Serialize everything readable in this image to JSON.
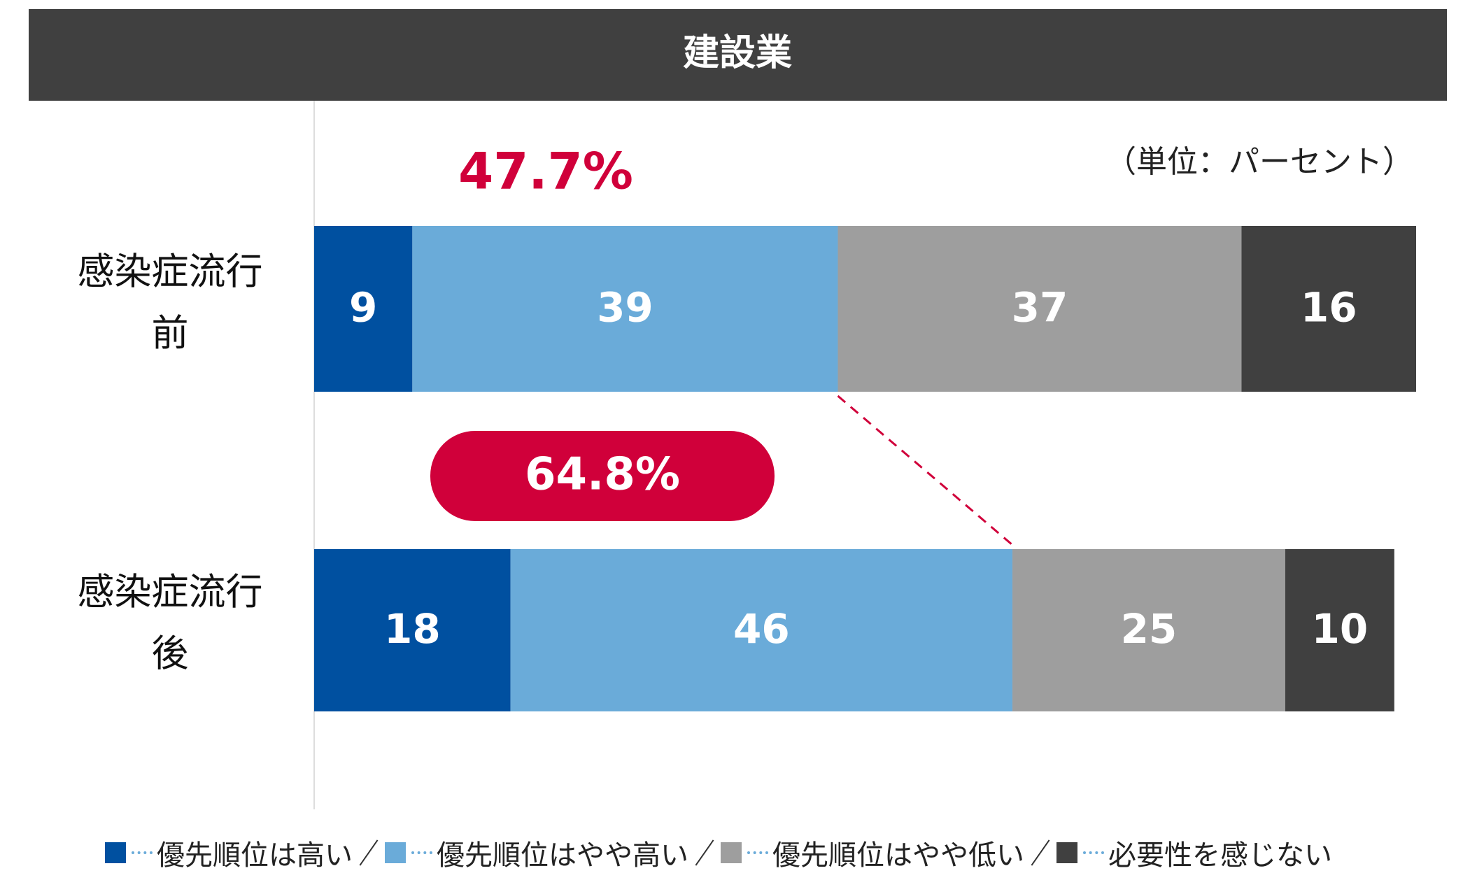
{
  "chart_data": {
    "type": "stacked_barh",
    "title": "建設業",
    "subtitle": "（単位：パーセント）",
    "categories": [
      "感染症流行前",
      "感染症流行後"
    ],
    "series": [
      {
        "name": "優先順位は高い",
        "color": "#0050a0",
        "values": [
          9,
          18
        ]
      },
      {
        "name": "優先順位はやや高い",
        "color": "#6aabd9",
        "values": [
          39,
          46
        ]
      },
      {
        "name": "優先順位はやや低い",
        "color": "#9e9e9e",
        "values": [
          37,
          25
        ]
      },
      {
        "name": "必要性を感じない",
        "color": "#404040",
        "values": [
          16,
          10
        ]
      }
    ],
    "xlim": [
      0,
      101
    ],
    "annotations": [
      "47.7%",
      "64.8%"
    ],
    "annotation_color": "#d0003a",
    "legend": "bottom"
  }
}
